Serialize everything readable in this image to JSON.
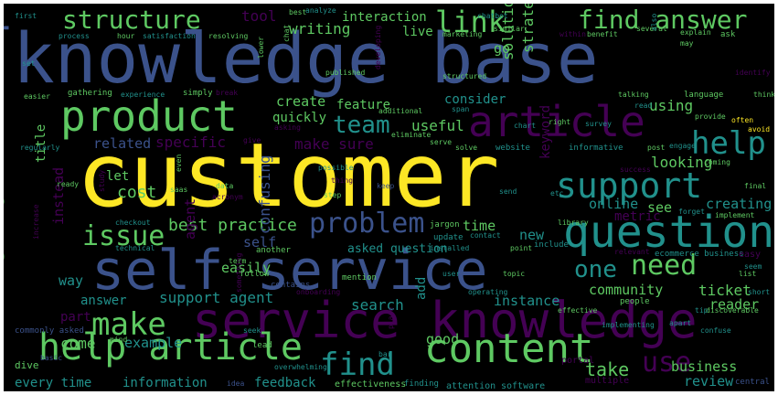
{
  "words": {
    "knowledge_base": "knowledge base",
    "customer": "customer",
    "self_service": "self service",
    "service_knowledge": "service knowledge",
    "product": "product",
    "article": "article",
    "company": "company",
    "structure": "structure",
    "find_answer": "find answer",
    "link": "link",
    "help_article": "help article",
    "content": "content",
    "question": "question",
    "support": "support",
    "help": "help",
    "make": "make",
    "issue": "issue",
    "problem": "problem",
    "need": "need",
    "one": "one",
    "use": "use",
    "error": "error",
    "find": "find",
    "team": "team",
    "writing": "writing",
    "interaction": "interaction",
    "tool": "tool",
    "strategy": "strategy",
    "solution": "solution",
    "best_practice": "best practice",
    "support_agent": "support agent",
    "make_sure": "make sure",
    "specific": "specific",
    "related": "related",
    "confusing": "confusing",
    "useful": "useful",
    "feature": "feature",
    "create": "create",
    "quickly": "quickly",
    "cost": "cost",
    "let": "let",
    "title": "title",
    "instead": "instead",
    "way": "way",
    "agent": "agent",
    "easily": "easily",
    "self": "self",
    "community": "community",
    "ticket": "ticket",
    "instance": "instance",
    "search": "search",
    "reader": "reader",
    "add": "add",
    "example": "example",
    "come": "come",
    "answer": "answer",
    "part": "part",
    "information": "information",
    "every_time": "every time",
    "feedback": "feedback",
    "good": "good",
    "take": "take",
    "review": "review",
    "business": "business",
    "looking": "looking",
    "keyword": "keyword",
    "online": "online",
    "see": "see",
    "creating": "creating",
    "metric": "metric",
    "using": "using",
    "consider": "consider",
    "go": "go",
    "live": "live",
    "new": "new",
    "time": "time",
    "asked_question": "asked question",
    "update": "update",
    "effectiveness": "effectiveness",
    "finding": "finding",
    "attention": "attention",
    "software": "software",
    "multiple": "multiple",
    "central": "central",
    "portal": "portal",
    "lead": "lead",
    "dive": "dive",
    "commonly_asked": "commonly asked",
    "mention": "mention",
    "another": "another",
    "follow": "follow",
    "contains": "contains",
    "best": "best",
    "analyze": "analyze",
    "chatbot": "chatbot",
    "first": "first",
    "process": "process",
    "hour": "hour",
    "satisfaction": "satisfaction",
    "resolving": "resolving",
    "marketing": "marketing",
    "similar": "similar",
    "within": "within",
    "benefit": "benefit",
    "several": "several",
    "explain": "explain",
    "ask": "ask",
    "may": "may",
    "identify": "identify",
    "set": "set",
    "easier": "easier",
    "gathering": "gathering",
    "experience": "experience",
    "simply": "simply",
    "break": "break",
    "published": "published",
    "structured": "structured",
    "additional": "additional",
    "language": "language",
    "talking": "talking",
    "think": "think",
    "read": "read",
    "provide": "provide",
    "often": "often",
    "avoid": "avoid",
    "eliminate": "eliminate",
    "span": "span",
    "chart": "chart",
    "right": "right",
    "survey": "survey",
    "informative": "informative",
    "website": "website",
    "solve": "solve",
    "post": "post",
    "engage": "engage",
    "regularly": "regularly",
    "give": "give",
    "asking": "asking",
    "serve": "serve",
    "coming": "coming",
    "success": "success",
    "final": "final",
    "implement": "implement",
    "forget": "forget",
    "library": "library",
    "jargon": "jargon",
    "contact": "contact",
    "include": "include",
    "point": "point",
    "installed": "installed",
    "relevant": "relevant",
    "ecommerce_business": "ecommerce business",
    "easy": "easy",
    "seem": "seem",
    "list": "list",
    "short": "short",
    "discoverable": "discoverable",
    "tip": "tip",
    "people": "people",
    "effective": "effective",
    "operating": "operating",
    "topic": "topic",
    "user": "user",
    "onboarding": "onboarding",
    "checkout": "checkout",
    "technical": "technical",
    "term": "term",
    "overwhelming": "overwhelming",
    "seek": "seek",
    "mind": "mind",
    "bar": "bar",
    "idea": "idea",
    "basic": "basic",
    "confuse": "confuse",
    "implementing": "implementing",
    "apart": "apart",
    "data": "data",
    "acronym": "acronym",
    "saas": "saas",
    "even": "even",
    "study": "study",
    "ready": "ready",
    "step": "step",
    "possible": "possible",
    "keep": "keep",
    "thing": "thing",
    "send": "send",
    "etc": "etc",
    "lower": "lower",
    "chat": "chat",
    "developing": "developing",
    "also": "also",
    "something": "something",
    "place": "place",
    "increase": "increase"
  },
  "colors": {
    "background": "#000000",
    "yellow": "#fde725",
    "green": "#5ec962",
    "teal": "#21918c",
    "blue": "#3b528b",
    "purple": "#440154"
  }
}
